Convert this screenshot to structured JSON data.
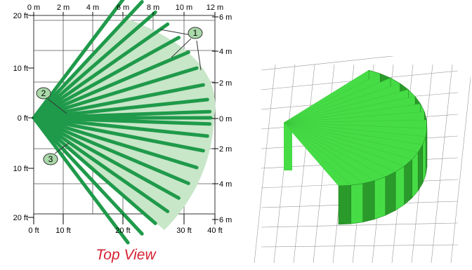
{
  "top_view": {
    "top_axis_labels": [
      "0 m",
      "2 m",
      "4 m",
      "6 m",
      "8 m",
      "10 m",
      "12 m"
    ],
    "bottom_axis_labels": [
      "0 ft",
      "10 ft",
      "20 ft",
      "30 ft",
      "40 ft"
    ],
    "left_axis_labels": [
      "20 ft",
      "10 ft",
      "0 ft",
      "10 ft",
      "20 ft"
    ],
    "right_axis_labels": [
      "6 m",
      "4 m",
      "2 m",
      "0 m",
      "2 m",
      "4 m",
      "6 m"
    ],
    "callouts": [
      "1",
      "2",
      "3"
    ]
  },
  "caption": "Top View",
  "colors": {
    "coverage_area": "#c8e6c8",
    "beam": "#1f9a4a",
    "callout_fill": "#a9d8a9",
    "caption": "#d42032",
    "volume_light": "#46dc46",
    "volume_dark": "#2a9a2a"
  }
}
